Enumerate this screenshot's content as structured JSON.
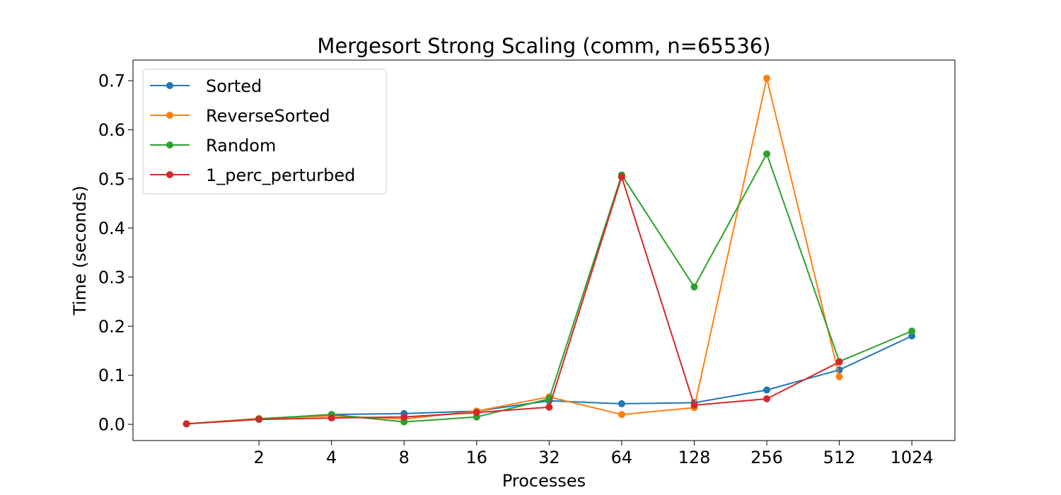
{
  "chart_data": {
    "type": "line",
    "title": "Mergesort Strong Scaling (comm, n=65536)",
    "xlabel": "Processes",
    "ylabel": "Time (seconds)",
    "x_scale": "log2",
    "x_tick_labels": [
      "2",
      "4",
      "8",
      "16",
      "32",
      "64",
      "128",
      "256",
      "512",
      "1024"
    ],
    "x": [
      1,
      2,
      4,
      8,
      16,
      32,
      64,
      128,
      256,
      512,
      1024
    ],
    "y_ticks": [
      "0.0",
      "0.1",
      "0.2",
      "0.3",
      "0.4",
      "0.5",
      "0.6",
      "0.7"
    ],
    "ylim": [
      -0.033,
      0.742
    ],
    "xlim": [
      0.6,
      1545
    ],
    "grid": false,
    "legend_position": "top-left",
    "series": [
      {
        "name": "Sorted",
        "color": "#1f77b4",
        "x": [
          1,
          2,
          4,
          8,
          16,
          32,
          64,
          128,
          256,
          512,
          1024
        ],
        "values": [
          0.001,
          0.011,
          0.02,
          0.022,
          0.027,
          0.048,
          0.042,
          0.044,
          0.07,
          0.111,
          0.18
        ]
      },
      {
        "name": "ReverseSorted",
        "color": "#ff7f0e",
        "x": [
          1,
          2,
          4,
          8,
          16,
          32,
          64,
          128,
          256,
          512
        ],
        "values": [
          0.001,
          0.012,
          0.017,
          0.011,
          0.027,
          0.056,
          0.02,
          0.034,
          0.705,
          0.097
        ]
      },
      {
        "name": "Random",
        "color": "#2ca02c",
        "x": [
          1,
          2,
          4,
          8,
          16,
          32,
          64,
          128,
          256,
          512,
          1024
        ],
        "values": [
          0.001,
          0.011,
          0.02,
          0.005,
          0.015,
          0.052,
          0.508,
          0.28,
          0.551,
          0.128,
          0.19
        ]
      },
      {
        "name": "1_perc_perturbed",
        "color": "#d62728",
        "x": [
          1,
          2,
          4,
          8,
          16,
          32,
          64,
          128,
          256,
          512
        ],
        "values": [
          0.001,
          0.01,
          0.013,
          0.015,
          0.024,
          0.035,
          0.504,
          0.039,
          0.052,
          0.127
        ]
      }
    ]
  }
}
